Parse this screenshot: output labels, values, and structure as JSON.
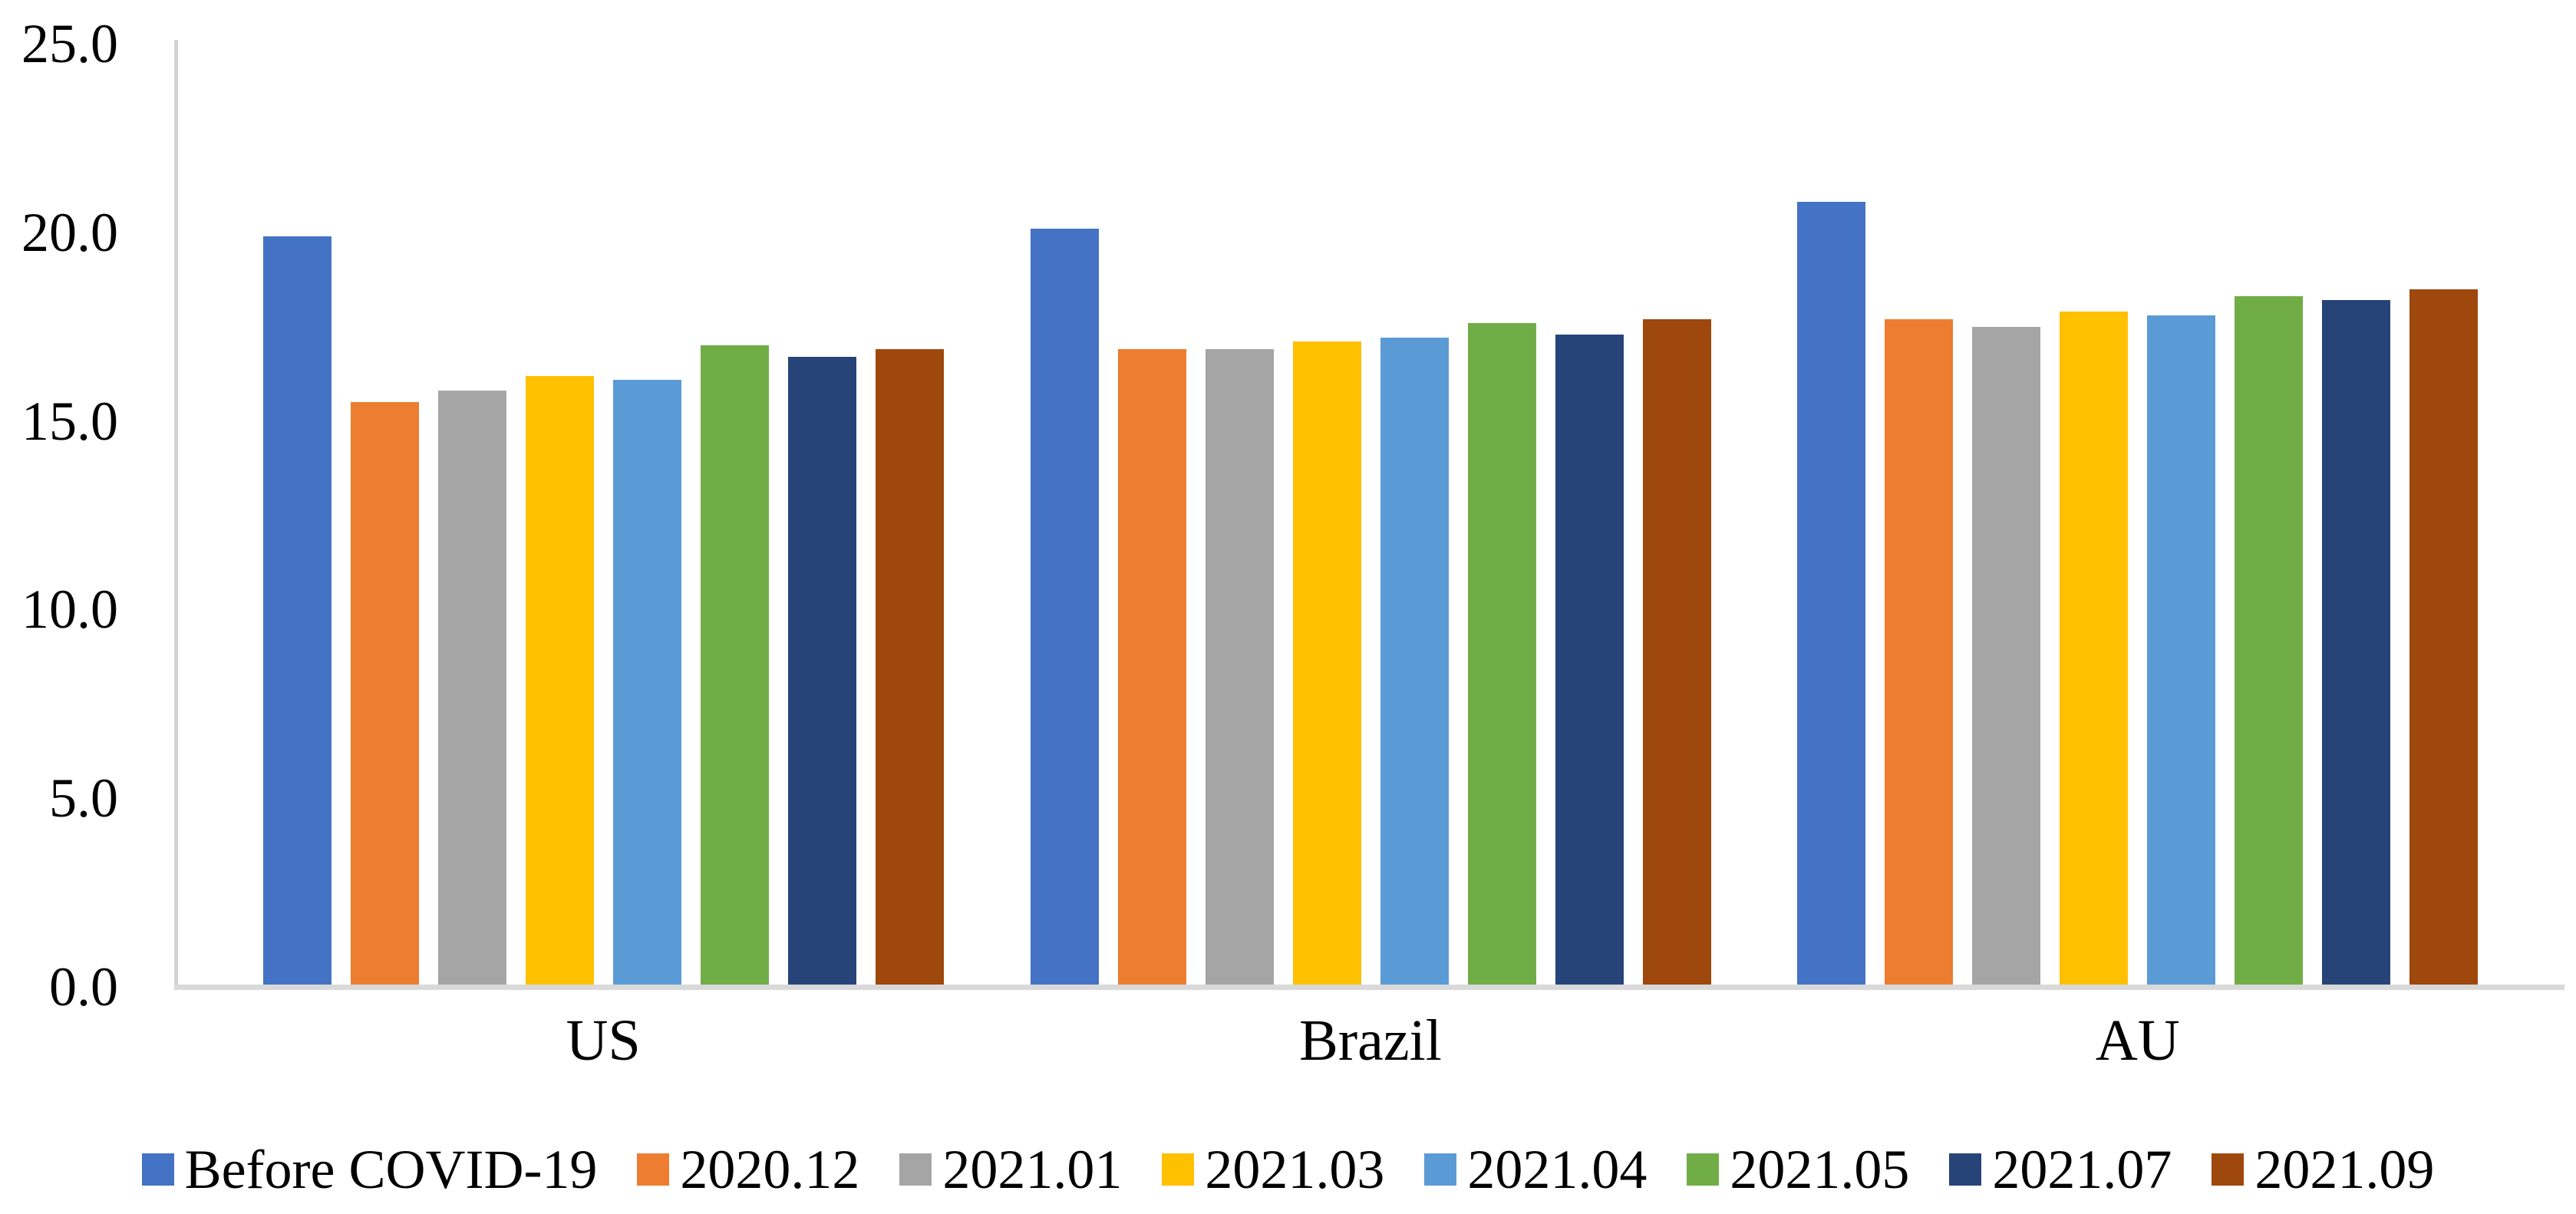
{
  "chart_data": {
    "type": "bar",
    "title": "",
    "xlabel": "",
    "ylabel": "",
    "categories": [
      "US",
      "Brazil",
      "AU"
    ],
    "series": [
      {
        "name": "Before COVID-19",
        "color": "#4472C4",
        "values": [
          19.9,
          20.1,
          20.8
        ]
      },
      {
        "name": "2020.12",
        "color": "#ED7D31",
        "values": [
          15.5,
          16.9,
          17.7
        ]
      },
      {
        "name": "2021.01",
        "color": "#A5A5A5",
        "values": [
          15.8,
          16.9,
          17.5
        ]
      },
      {
        "name": "2021.03",
        "color": "#FFC000",
        "values": [
          16.2,
          17.1,
          17.9
        ]
      },
      {
        "name": "2021.04",
        "color": "#5B9BD5",
        "values": [
          16.1,
          17.2,
          17.8
        ]
      },
      {
        "name": "2021.05",
        "color": "#70AD47",
        "values": [
          17.0,
          17.6,
          18.3
        ]
      },
      {
        "name": "2021.07",
        "color": "#264478",
        "values": [
          16.7,
          17.3,
          18.2
        ]
      },
      {
        "name": "2021.09",
        "color": "#9E480E",
        "values": [
          16.9,
          17.7,
          18.5
        ]
      }
    ],
    "ylim": [
      0,
      25
    ],
    "ytick_step": 5,
    "yticks": [
      "25.0",
      "20.0",
      "15.0",
      "10.0",
      "5.0",
      "0.0"
    ],
    "grid": false,
    "legend_position": "bottom",
    "axis_line_color": "#d9d9d9"
  }
}
